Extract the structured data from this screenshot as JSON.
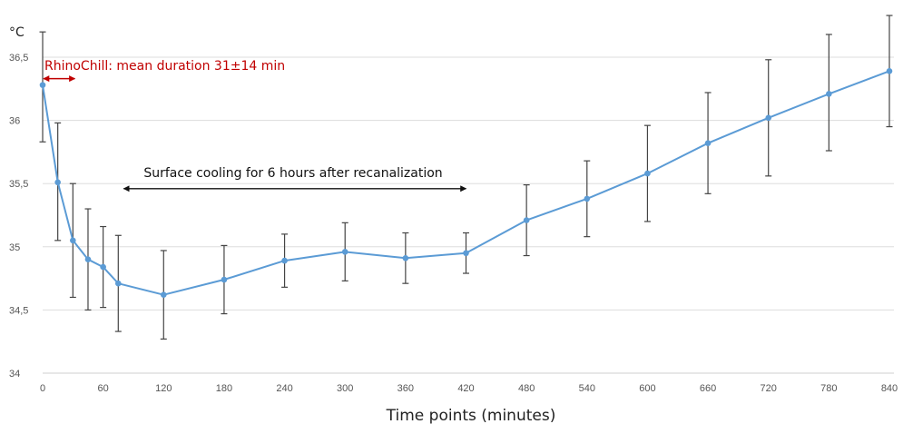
{
  "chart_data": {
    "type": "line",
    "ylabel": "°C",
    "xlabel": "Time points (minutes)",
    "ylim": [
      34,
      36.7
    ],
    "xlim": [
      0,
      840
    ],
    "y_ticks": [
      34,
      34.5,
      35,
      35.5,
      36,
      36.5
    ],
    "y_tick_labels": [
      "34",
      "34,5",
      "35",
      "35,5",
      "36",
      "36,5"
    ],
    "x_ticks": [
      0,
      60,
      120,
      180,
      240,
      300,
      360,
      420,
      480,
      540,
      600,
      660,
      720,
      780,
      840
    ],
    "x_tick_labels": [
      "0",
      "60",
      "120",
      "180",
      "240",
      "300",
      "360",
      "420",
      "480",
      "540",
      "600",
      "660",
      "720",
      "780",
      "840"
    ],
    "grid": "horizontal",
    "series": [
      {
        "x": [
          0,
          15,
          30,
          45,
          60,
          75,
          120,
          180,
          240,
          300,
          360,
          420,
          480,
          540,
          600,
          660,
          720,
          780,
          840
        ],
        "y": [
          36.28,
          35.51,
          35.05,
          34.9,
          34.84,
          34.71,
          34.62,
          34.74,
          34.89,
          34.96,
          34.91,
          34.95,
          35.21,
          35.38,
          35.58,
          35.82,
          36.02,
          36.21,
          36.39
        ],
        "lower": [
          35.83,
          35.05,
          34.6,
          34.5,
          34.52,
          34.33,
          34.27,
          34.47,
          34.68,
          34.73,
          34.71,
          34.79,
          34.93,
          35.08,
          35.2,
          35.42,
          35.56,
          35.76,
          35.95
        ],
        "upper": [
          36.7,
          35.98,
          35.5,
          35.3,
          35.16,
          35.09,
          34.97,
          35.01,
          35.1,
          35.19,
          35.11,
          35.11,
          35.49,
          35.68,
          35.96,
          36.22,
          36.48,
          36.68,
          36.83
        ]
      }
    ],
    "annotations": [
      {
        "text": "RhinoChill: mean duration 31±14 min",
        "x_start": 0,
        "x_end": 31,
        "y": 36.28,
        "color": "#c00000"
      },
      {
        "text": "Surface cooling for 6 hours after recanalization",
        "x_start": 75,
        "x_end": 420,
        "y": 35.46,
        "color": "#111111"
      }
    ],
    "colors": {
      "line": "#5b9bd5",
      "error_bar": "#444444",
      "grid": "#dddddd",
      "annotation_red": "#c00000"
    }
  }
}
